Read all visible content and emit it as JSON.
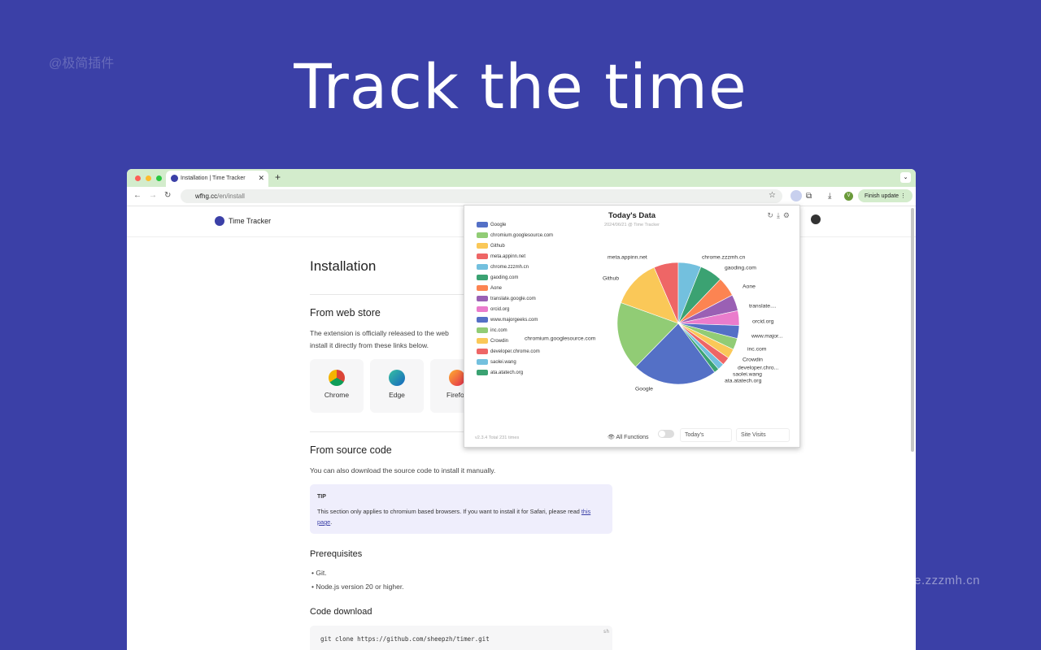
{
  "watermark": "@极简插件",
  "watermark_site": "chrome.zzzmh.cn",
  "hero_title": "Track the time",
  "browser": {
    "tab_title": "Installation | Time Tracker",
    "url_host": "wfhg.cc",
    "url_path": "/en/install",
    "finish_update": "Finish update",
    "avatar": "V"
  },
  "site": {
    "logo": "Time Tracker"
  },
  "page": {
    "title": "Installation",
    "web_store": {
      "heading": "From web store",
      "text1": "The extension is officially released to the web",
      "text2": "install it directly from these links below.",
      "cards": [
        "Chrome",
        "Edge",
        "Firefox"
      ]
    },
    "source": {
      "heading": "From source code",
      "text": "You can also download the source code to install it manually."
    },
    "tip": {
      "label": "TIP",
      "text": "This section only applies to chromium based browsers. If you want to install it for Safari, please read ",
      "link": "this page",
      "end": "."
    },
    "prereq": {
      "heading": "Prerequisites",
      "items": [
        "Git.",
        "Node.js version 20 or higher."
      ]
    },
    "download": {
      "heading": "Code download",
      "lang": "sh",
      "code": "git clone https://github.com/sheepzh/timer.git"
    }
  },
  "popup": {
    "version_total": "v2.3.4 Total 231 times",
    "all_functions": "All Functions",
    "range": "Today's",
    "metric": "Site Visits"
  },
  "chart_data": {
    "type": "pie",
    "title": "Today's Data",
    "subtitle": "2024/06/21 @ Time Tracker",
    "legend_position": "left",
    "categories": [
      "Google",
      "chromium.googlesource.com",
      "Github",
      "meta.appinn.net",
      "chrome.zzzmh.cn",
      "gaoding.com",
      "Aone",
      "translate.google.com",
      "orcid.org",
      "www.majorgeeks.com",
      "inc.com",
      "Crowdin",
      "developer.chrome.com",
      "saolei.wang",
      "ata.atatech.org"
    ],
    "labels": [
      "Google",
      "chromium.googlesource.com",
      "Github",
      "meta.appinn.net",
      "chrome.zzzmh.cn",
      "gaoding.com",
      "Aone",
      "translate....",
      "orcid.org",
      "www.major...",
      "inc.com",
      "Crowdin",
      "developer.chro...",
      "saolei.wang",
      "ata.atatech.org"
    ],
    "values": [
      52,
      42,
      30,
      15,
      14,
      14,
      12,
      10,
      9,
      8,
      7,
      6,
      5,
      4,
      3
    ],
    "colors": [
      "#5470c6",
      "#91cc75",
      "#fac858",
      "#ee6666",
      "#73c0de",
      "#3ba272",
      "#fc8452",
      "#9a60b4",
      "#ea7ccc",
      "#5470c6",
      "#91cc75",
      "#fac858",
      "#ee6666",
      "#73c0de",
      "#3ba272"
    ]
  }
}
